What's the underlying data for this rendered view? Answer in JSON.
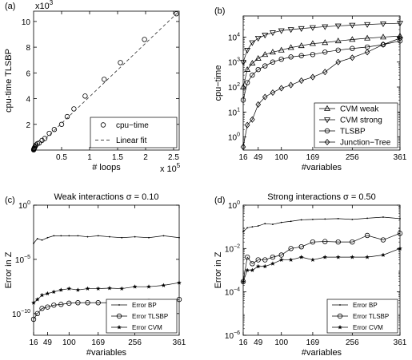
{
  "chart_data": [
    {
      "panel_label": "(a)",
      "type": "scatter",
      "title": "",
      "xlabel": "# loops",
      "ylabel": "cpu-time TLSBP",
      "x_multiplier": "x 10",
      "x_multiplier_exp": "5",
      "y_multiplier": "x10",
      "y_multiplier_exp": "3",
      "xlim": [
        0,
        2.6
      ],
      "ylim": [
        0,
        10.8
      ],
      "xticks": [
        0.5,
        1,
        1.5,
        2,
        2.5
      ],
      "xtick_labels": [
        "0.5",
        "1",
        "1.5",
        "2",
        "2.5"
      ],
      "yticks": [
        2,
        4,
        6,
        8,
        10
      ],
      "ytick_labels": [
        "2",
        "4",
        "6",
        "8",
        "10"
      ],
      "legend": {
        "position": "bottom-right",
        "entries": [
          "cpu−time",
          "Linear fit"
        ]
      },
      "series": [
        {
          "name": "cpu−time",
          "marker": "circle",
          "x": [
            0.001,
            0.003,
            0.006,
            0.01,
            0.015,
            0.02,
            0.03,
            0.045,
            0.07,
            0.1,
            0.15,
            0.2,
            0.28,
            0.37,
            0.5,
            0.6,
            0.72,
            0.92,
            1.26,
            1.55,
            1.98,
            2.55
          ],
          "y": [
            0.02,
            0.05,
            0.08,
            0.12,
            0.16,
            0.22,
            0.3,
            0.4,
            0.5,
            0.55,
            0.75,
            0.9,
            1.3,
            1.6,
            2.0,
            2.6,
            3.2,
            4.2,
            5.5,
            6.8,
            8.6,
            10.6
          ]
        },
        {
          "name": "Linear fit",
          "style": "dashed",
          "x": [
            0,
            2.6
          ],
          "y": [
            0,
            10.8
          ]
        }
      ]
    },
    {
      "panel_label": "(b)",
      "type": "line",
      "title": "",
      "xlabel": "#variables",
      "ylabel": "cpu−time",
      "yscale": "log",
      "xlim": [
        16,
        361
      ],
      "ylim": [
        0.3,
        70000
      ],
      "xticks": [
        16,
        49,
        100,
        169,
        256,
        361
      ],
      "yticks": [
        1,
        10,
        100,
        1000,
        10000
      ],
      "ytick_labels": [
        "10",
        "10",
        "10",
        "10",
        "10"
      ],
      "ytick_exps": [
        "0",
        "1",
        "2",
        "3",
        "4"
      ],
      "legend": {
        "position": "bottom-right",
        "entries": [
          "CVM weak",
          "CVM strong",
          "TLSBP",
          "Junction−Tree"
        ]
      },
      "series": [
        {
          "name": "CVM weak",
          "marker": "triangle-up",
          "x": [
            16,
            25,
            36,
            49,
            64,
            81,
            100,
            121,
            144,
            169,
            196,
            225,
            256,
            289,
            324,
            361
          ],
          "y": [
            100,
            500,
            900,
            1400,
            2000,
            2500,
            3000,
            3800,
            4500,
            5500,
            6000,
            7000,
            8000,
            9000,
            10000,
            11000
          ]
        },
        {
          "name": "CVM strong",
          "marker": "triangle-down",
          "x": [
            16,
            25,
            36,
            49,
            64,
            81,
            100,
            121,
            144,
            169,
            196,
            225,
            256,
            289,
            324,
            361
          ],
          "y": [
            1000,
            3000,
            6000,
            9000,
            12000,
            15000,
            18000,
            20000,
            22000,
            24000,
            26000,
            28000,
            30000,
            32000,
            34000,
            36000
          ]
        },
        {
          "name": "TLSBP",
          "marker": "circle",
          "x": [
            16,
            25,
            36,
            49,
            64,
            81,
            100,
            121,
            144,
            169,
            196,
            225,
            256,
            289,
            324,
            361
          ],
          "y": [
            30,
            150,
            300,
            500,
            700,
            1000,
            1300,
            1600,
            1800,
            2000,
            2500,
            3000,
            3500,
            4000,
            5000,
            7000
          ]
        },
        {
          "name": "Junction−Tree",
          "marker": "diamond",
          "x": [
            16,
            25,
            36,
            49,
            64,
            81,
            100,
            121,
            144,
            169,
            196,
            225,
            256,
            289,
            324,
            361
          ],
          "y": [
            0.4,
            3,
            5,
            20,
            40,
            60,
            90,
            120,
            180,
            250,
            400,
            1000,
            1500,
            2500,
            5000,
            9000
          ]
        }
      ]
    },
    {
      "panel_label": "(c)",
      "type": "line",
      "title": "Weak interactions σ = 0.10",
      "xlabel": "#variables",
      "ylabel": "Error in Z",
      "yscale": "log",
      "xlim": [
        16,
        361
      ],
      "ylim": [
        1e-12,
        1
      ],
      "xticks": [
        16,
        49,
        100,
        169,
        256,
        361
      ],
      "yticks": [
        1e-10,
        1e-05,
        1
      ],
      "ytick_labels": [
        "10",
        "10",
        "10"
      ],
      "ytick_exps": [
        "−10",
        "−5",
        "0"
      ],
      "legend": {
        "position": "bottom-right",
        "entries": [
          "Error BP",
          "Error TLSBP",
          "Error CVM"
        ]
      },
      "series": [
        {
          "name": "Error BP",
          "marker": "dot",
          "x": [
            16,
            25,
            36,
            49,
            64,
            81,
            100,
            121,
            144,
            169,
            196,
            225,
            256,
            289,
            324,
            361
          ],
          "y": [
            0.0003,
            0.0008,
            0.0006,
            0.001,
            0.0015,
            0.0015,
            0.0015,
            0.0015,
            0.0012,
            0.0015,
            0.0012,
            0.001,
            0.0012,
            0.001,
            0.0015,
            0.001
          ]
        },
        {
          "name": "Error TLSBP",
          "marker": "circle",
          "x": [
            16,
            25,
            36,
            49,
            64,
            81,
            100,
            121,
            144,
            169,
            196,
            225,
            256,
            289,
            324,
            361
          ],
          "y": [
            3e-11,
            1e-10,
            3e-10,
            4e-10,
            6e-10,
            7e-10,
            9e-10,
            1e-09,
            1e-09,
            1e-09,
            1e-09,
            8e-10,
            1.2e-09,
            1.3e-09,
            1.2e-09,
            2e-09
          ]
        },
        {
          "name": "Error CVM",
          "marker": "star",
          "x": [
            16,
            25,
            36,
            49,
            64,
            81,
            100,
            121,
            144,
            169,
            196,
            225,
            256,
            289,
            324,
            361
          ],
          "y": [
            1e-09,
            2e-09,
            5e-09,
            7e-09,
            1e-08,
            1.5e-08,
            2e-08,
            1.5e-08,
            2e-08,
            2e-08,
            2.2e-08,
            2e-08,
            3e-08,
            3e-08,
            4e-08,
            7e-08
          ]
        }
      ]
    },
    {
      "panel_label": "(d)",
      "type": "line",
      "title": "Strong interactions σ = 0.50",
      "xlabel": "#variables",
      "ylabel": "Error in Z",
      "yscale": "log",
      "xlim": [
        16,
        361
      ],
      "ylim": [
        1e-06,
        1
      ],
      "xticks": [
        16,
        49,
        100,
        169,
        256,
        361
      ],
      "yticks": [
        1e-06,
        0.0001,
        0.01,
        1
      ],
      "ytick_labels": [
        "10",
        "10",
        "10",
        "10"
      ],
      "ytick_exps": [
        "−6",
        "−4",
        "−2",
        "0"
      ],
      "legend": {
        "position": "bottom-right",
        "entries": [
          "Error BP",
          "Error TLSBP",
          "Error CVM"
        ]
      },
      "series": [
        {
          "name": "Error BP",
          "marker": "dot",
          "x": [
            16,
            25,
            36,
            49,
            64,
            81,
            100,
            121,
            144,
            169,
            196,
            225,
            256,
            289,
            324,
            361
          ],
          "y": [
            0.06,
            0.09,
            0.1,
            0.11,
            0.14,
            0.13,
            0.16,
            0.18,
            0.21,
            0.22,
            0.23,
            0.24,
            0.22,
            0.25,
            0.28,
            0.24
          ]
        },
        {
          "name": "Error TLSBP",
          "marker": "circle",
          "x": [
            16,
            25,
            36,
            49,
            64,
            81,
            100,
            121,
            144,
            169,
            196,
            225,
            256,
            289,
            324,
            361
          ],
          "y": [
            0.0003,
            0.004,
            0.002,
            0.003,
            0.003,
            0.004,
            0.005,
            0.01,
            0.012,
            0.02,
            0.021,
            0.02,
            0.02,
            0.04,
            0.025,
            0.05
          ]
        },
        {
          "name": "Error CVM",
          "marker": "star",
          "x": [
            16,
            25,
            36,
            49,
            64,
            81,
            100,
            121,
            144,
            169,
            196,
            225,
            256,
            289,
            324,
            361
          ],
          "y": [
            0.0003,
            0.001,
            0.001,
            0.0015,
            0.0015,
            0.002,
            0.003,
            0.003,
            0.004,
            0.003,
            0.004,
            0.004,
            0.004,
            0.004,
            0.005,
            0.01
          ]
        }
      ]
    }
  ]
}
